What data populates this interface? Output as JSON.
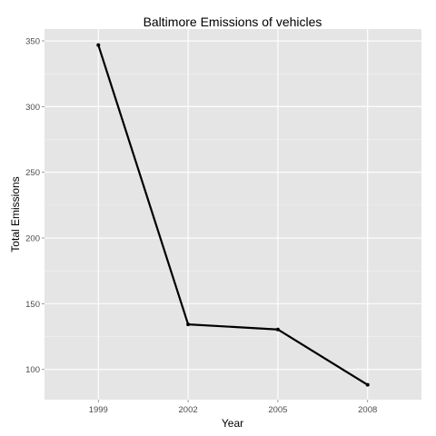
{
  "chart_data": {
    "type": "line",
    "title": "Baltimore Emissions of vehicles",
    "xlabel": "Year",
    "ylabel": "Total Emissions",
    "categories": [
      "1999",
      "2002",
      "2005",
      "2008"
    ],
    "series": [
      {
        "values": [
          346.8,
          134.3,
          130.4,
          88.3
        ]
      }
    ],
    "yticks": [
      100,
      150,
      200,
      250,
      300,
      350
    ],
    "ylim": [
      77,
      359
    ],
    "grid": true,
    "legend": "none",
    "colors": {
      "panel": "#e5e5e5",
      "grid_major": "#ffffff",
      "grid_minor": "#f2f2f2",
      "line": "#000000",
      "tick_label": "#4d4d4d"
    }
  }
}
